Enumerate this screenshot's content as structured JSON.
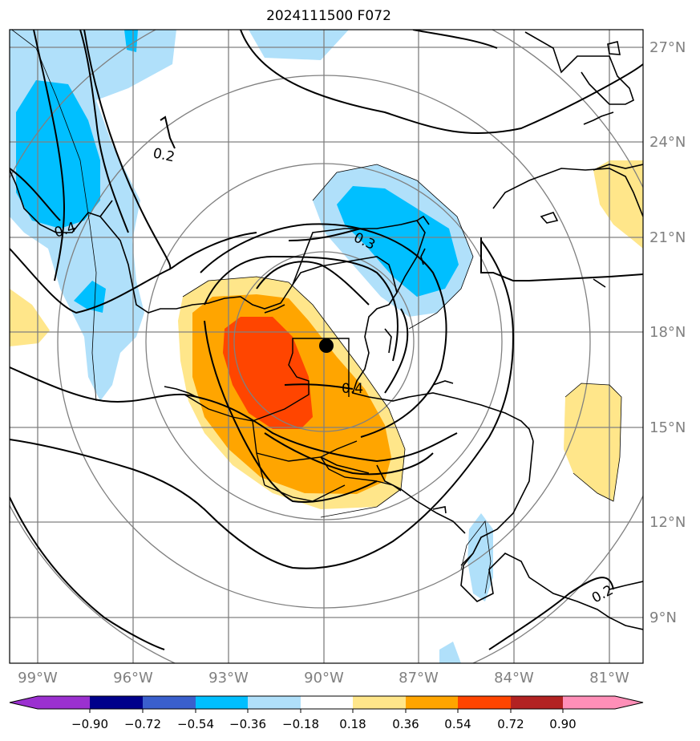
{
  "title": "2024111500 F072",
  "lon_labels": [
    "99°W",
    "96°W",
    "93°W",
    "90°W",
    "87°W",
    "84°W",
    "81°W"
  ],
  "lat_labels": [
    "27°N",
    "24°N",
    "21°N",
    "18°N",
    "15°N",
    "12°N",
    "9°N"
  ],
  "contour_labels": [
    "0.2",
    "0.4",
    "0.3",
    "0.4",
    "0.2"
  ],
  "colorbar": {
    "ticks": [
      "−0.90",
      "−0.72",
      "−0.54",
      "−0.36",
      "−0.18",
      "0.18",
      "0.36",
      "0.54",
      "0.72",
      "0.90"
    ],
    "colors": [
      "#9b30d0",
      "#00008b",
      "#3a5fcd",
      "#00bfff",
      "#b0e0fa",
      "#ffffff",
      "#ffe68a",
      "#ffa500",
      "#ff4500",
      "#b22222",
      "#ff8fb8"
    ]
  },
  "colors": {
    "grid": "#808080",
    "coast": "#000000",
    "neg_strong": "#00bfff",
    "neg_weak": "#b0e0fa",
    "pos_weak": "#ffe68a",
    "pos_mid": "#ffa500",
    "pos_strong": "#ff4500"
  },
  "marker": "storm-center"
}
